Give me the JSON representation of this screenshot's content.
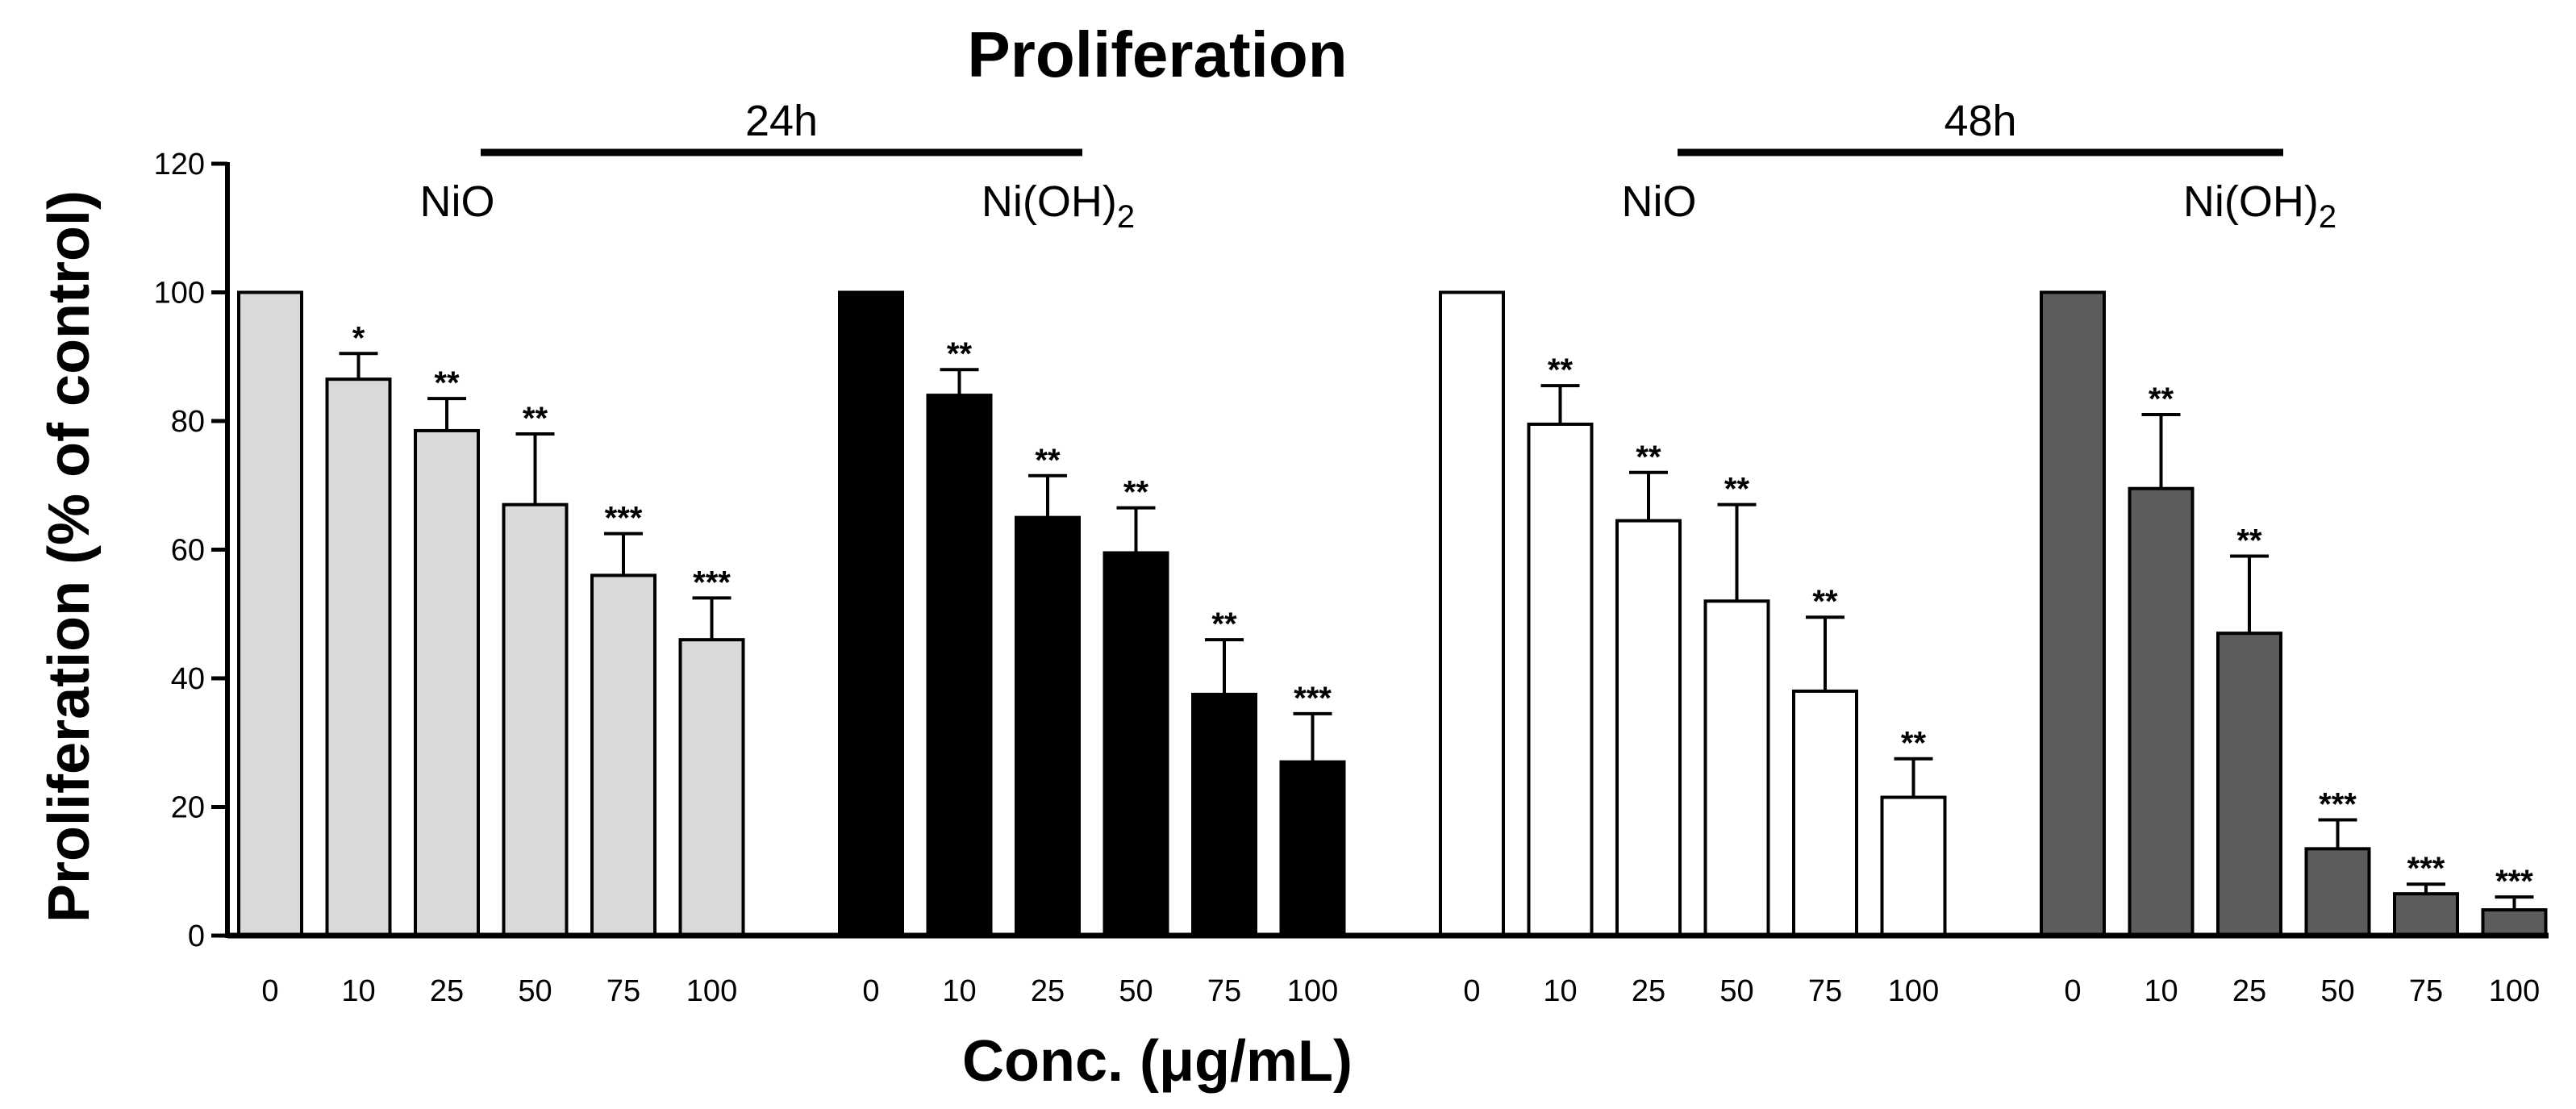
{
  "chart_data": {
    "type": "bar",
    "title": "Proliferation",
    "xlabel": "Conc. (μg/mL)",
    "ylabel": "Proliferation (% of control)",
    "ylim": [
      0,
      120
    ],
    "yticks": [
      0,
      20,
      40,
      60,
      80,
      100,
      120
    ],
    "categories": [
      "0",
      "10",
      "25",
      "50",
      "75",
      "100"
    ],
    "timepoints": [
      {
        "label": "24h",
        "groups": [
          0,
          1
        ]
      },
      {
        "label": "48h",
        "groups": [
          2,
          3
        ]
      }
    ],
    "groups": [
      {
        "name": "NiO",
        "label_main": "NiO",
        "label_sub": "",
        "color": "#d9d9d9",
        "values": [
          100,
          86.5,
          78.5,
          67,
          56,
          46
        ],
        "errors": [
          0,
          4,
          5,
          11,
          6.5,
          6.5
        ],
        "significance": [
          "",
          "*",
          "**",
          "**",
          "***",
          "***"
        ]
      },
      {
        "name": "Ni(OH)2",
        "label_main": "Ni(OH)",
        "label_sub": "2",
        "color": "#000000",
        "values": [
          100,
          84,
          65,
          59.5,
          37.5,
          27
        ],
        "errors": [
          0,
          4,
          6.5,
          7,
          8.5,
          7.5
        ],
        "significance": [
          "",
          "**",
          "**",
          "**",
          "**",
          "***"
        ]
      },
      {
        "name": "NiO",
        "label_main": "NiO",
        "label_sub": "",
        "color": "#ffffff",
        "values": [
          100,
          79.5,
          64.5,
          52,
          38,
          21.5
        ],
        "errors": [
          0,
          6,
          7.5,
          15,
          11.5,
          6
        ],
        "significance": [
          "",
          "**",
          "**",
          "**",
          "**",
          "**"
        ]
      },
      {
        "name": "Ni(OH)2",
        "label_main": "Ni(OH)",
        "label_sub": "2",
        "color": "#5c5c5c",
        "values": [
          100,
          69.5,
          47,
          13.5,
          6.5,
          4
        ],
        "errors": [
          0,
          11.5,
          12,
          4.5,
          1.5,
          2
        ],
        "significance": [
          "",
          "**",
          "**",
          "***",
          "***",
          "***"
        ]
      }
    ]
  }
}
